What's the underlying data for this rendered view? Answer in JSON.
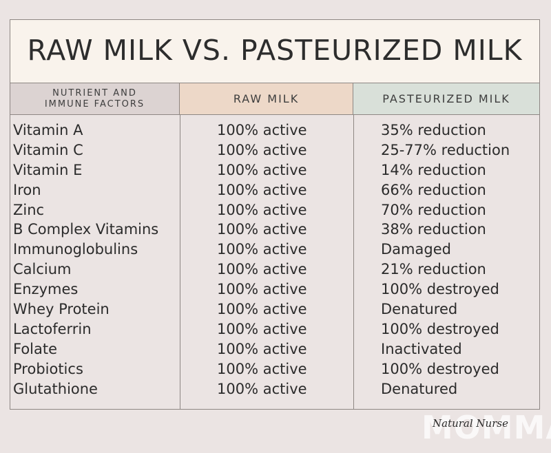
{
  "title": "RAW MILK VS. PASTEURIZED MILK",
  "headers": {
    "nutrient_line1": "NUTRIENT AND",
    "nutrient_line2": "IMMUNE FACTORS",
    "raw": "RAW MILK",
    "pasteurized": "PASTEURIZED MILK"
  },
  "rows": [
    {
      "nutrient": "Vitamin A",
      "raw": "100% active",
      "pasteurized": "35% reduction"
    },
    {
      "nutrient": "Vitamin C",
      "raw": "100% active",
      "pasteurized": "25-77% reduction"
    },
    {
      "nutrient": "Vitamin E",
      "raw": "100% active",
      "pasteurized": "14% reduction"
    },
    {
      "nutrient": "Iron",
      "raw": "100% active",
      "pasteurized": "66% reduction"
    },
    {
      "nutrient": "Zinc",
      "raw": "100% active",
      "pasteurized": "70% reduction"
    },
    {
      "nutrient": "B Complex Vitamins",
      "raw": "100% active",
      "pasteurized": "38% reduction"
    },
    {
      "nutrient": "Immunoglobulins",
      "raw": "100% active",
      "pasteurized": "Damaged"
    },
    {
      "nutrient": "Calcium",
      "raw": "100% active",
      "pasteurized": "21% reduction"
    },
    {
      "nutrient": "Enzymes",
      "raw": "100% active",
      "pasteurized": "100% destroyed"
    },
    {
      "nutrient": "Whey Protein",
      "raw": "100% active",
      "pasteurized": "Denatured"
    },
    {
      "nutrient": "Lactoferrin",
      "raw": "100% active",
      "pasteurized": "100% destroyed"
    },
    {
      "nutrient": "Folate",
      "raw": "100% active",
      "pasteurized": "Inactivated"
    },
    {
      "nutrient": "Probiotics",
      "raw": "100% active",
      "pasteurized": "100% destroyed"
    },
    {
      "nutrient": "Glutathione",
      "raw": "100% active",
      "pasteurized": "Denatured"
    }
  ],
  "watermark": {
    "big": "MOMMA",
    "script": "Natural Nurse"
  },
  "colors": {
    "background": "#ebe4e3",
    "title_box": "#f9f3ec",
    "nutrient_header": "#dcd3d2",
    "raw_header": "#edd8c8",
    "pasteurized_header": "#d9e0d9",
    "border": "#8d8683"
  }
}
